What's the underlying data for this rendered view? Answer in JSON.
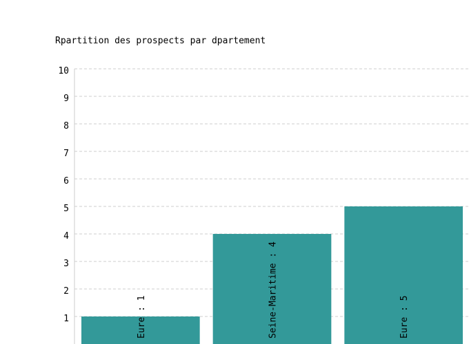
{
  "chart_data": {
    "type": "bar",
    "title": "Rpartition des prospects par dpartement",
    "xlabel": "",
    "ylabel": "",
    "ylim": [
      0,
      10
    ],
    "yticks": [
      1,
      2,
      3,
      4,
      5,
      6,
      7,
      8,
      9,
      10
    ],
    "grid": true,
    "categories": [
      "Eure",
      "Seine-Maritime",
      "Eure"
    ],
    "values": [
      1,
      4,
      5
    ],
    "data_labels": [
      "Eure : 1",
      "Seine-Maritime : 4",
      "Eure : 5"
    ],
    "bar_color": "#339999",
    "grid_color": "#cccccc"
  }
}
